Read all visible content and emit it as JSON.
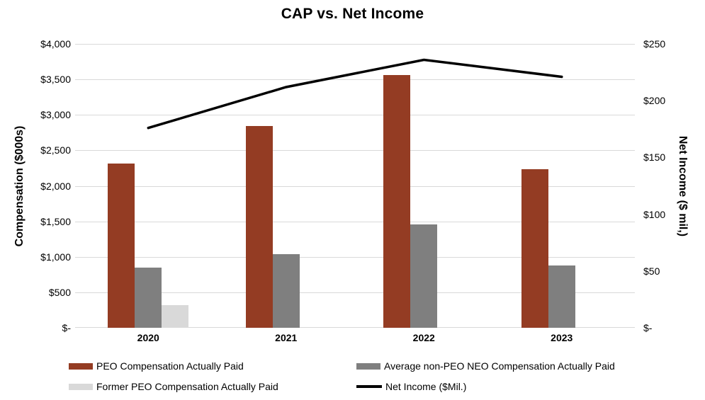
{
  "title": "CAP vs. Net Income",
  "left_axis": {
    "title": "Compensation ($000s)",
    "ticks": [
      {
        "label": "$4,000",
        "value": 4000
      },
      {
        "label": "$3,500",
        "value": 3500
      },
      {
        "label": "$3,000",
        "value": 3000
      },
      {
        "label": "$2,500",
        "value": 2500
      },
      {
        "label": "$2,000",
        "value": 2000
      },
      {
        "label": "$1,500",
        "value": 1500
      },
      {
        "label": "$1,000",
        "value": 1000
      },
      {
        "label": "$500",
        "value": 500
      },
      {
        "label": "$-",
        "value": 0
      }
    ]
  },
  "right_axis": {
    "title": "Net Income ($ mil,)",
    "ticks": [
      {
        "label": "$250",
        "value": 250
      },
      {
        "label": "$200",
        "value": 200
      },
      {
        "label": "$150",
        "value": 150
      },
      {
        "label": "$100",
        "value": 100
      },
      {
        "label": "$50",
        "value": 50
      },
      {
        "label": "$-",
        "value": 0
      }
    ]
  },
  "legend": [
    {
      "label": "PEO Compensation Actually Paid",
      "swatch": "bar",
      "color": "#943c23"
    },
    {
      "label": "Average non-PEO NEO Compensation Actually Paid",
      "swatch": "bar",
      "color": "#7f7f7f"
    },
    {
      "label": "Former PEO Compensation Actually Paid",
      "swatch": "bar",
      "color": "#d9d9d9"
    },
    {
      "label": "Net Income ($Mil.)",
      "swatch": "line",
      "color": "#000000"
    }
  ],
  "colors": {
    "peo_bar": "#943c23",
    "neo_bar": "#7f7f7f",
    "former_peo_bar": "#d9d9d9",
    "net_income_line": "#000000",
    "gridline": "#d9d9d9"
  },
  "chart_data": {
    "type": "bar",
    "note": "clustered bars on left axis plus line on right axis",
    "categories": [
      "2020",
      "2021",
      "2022",
      "2023"
    ],
    "series": [
      {
        "name": "PEO Compensation Actually Paid",
        "type": "bar",
        "axis": "left",
        "color": "#943c23",
        "values": [
          2315,
          2845,
          3560,
          2235
        ]
      },
      {
        "name": "Average non-PEO NEO Compensation Actually Paid",
        "type": "bar",
        "axis": "left",
        "color": "#7f7f7f",
        "values": [
          850,
          1040,
          1455,
          880
        ]
      },
      {
        "name": "Former PEO Compensation Actually Paid",
        "type": "bar",
        "axis": "left",
        "color": "#d9d9d9",
        "values": [
          315,
          null,
          null,
          null
        ]
      },
      {
        "name": "Net Income ($Mil.)",
        "type": "line",
        "axis": "right",
        "color": "#000000",
        "values": [
          176,
          212,
          236,
          221
        ]
      }
    ],
    "title": "CAP vs. Net Income",
    "xlabel": "",
    "ylabel_left": "Compensation ($000s)",
    "ylabel_right": "Net Income ($ mil,)",
    "left_ylim": [
      0,
      4000
    ],
    "right_ylim": [
      0,
      250
    ],
    "grid": true,
    "legend_position": "bottom"
  }
}
